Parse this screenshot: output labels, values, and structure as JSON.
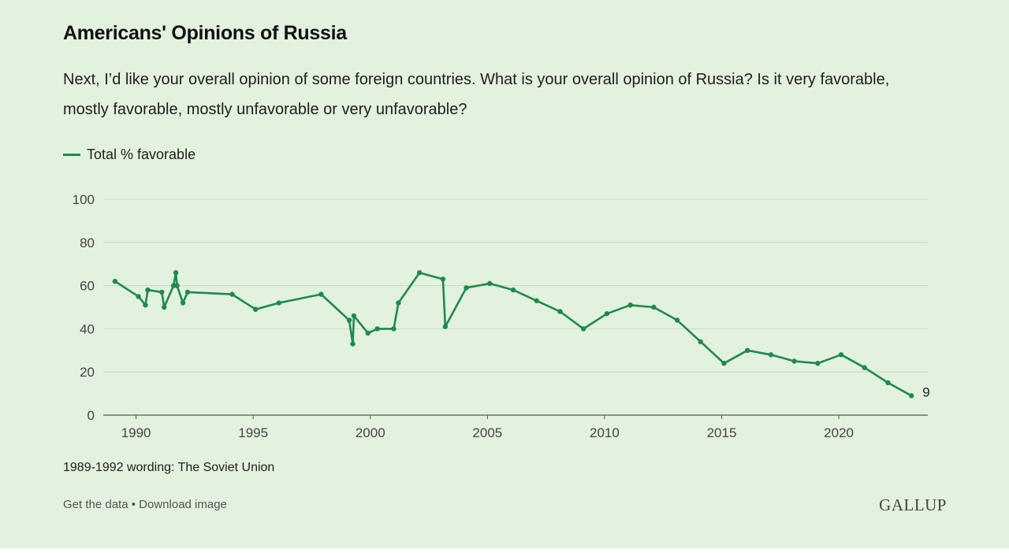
{
  "header": {
    "title": "Americans' Opinions of Russia",
    "subtitle": "Next, I’d like your overall opinion of some foreign countries. What is your overall opinion of Russia? Is it very favorable, mostly favorable, mostly unfavorable or very unfavorable?"
  },
  "legend": {
    "label": "Total % favorable"
  },
  "note": "1989-1992 wording: The Soviet Union",
  "footer": {
    "get_data": "Get the data",
    "separator": "•",
    "download": "Download image",
    "logo": "GALLUP"
  },
  "colors": {
    "background": "#e3f1df",
    "line": "#1f8a4c",
    "grid": "#c9d9c4",
    "axis_text": "#444444"
  },
  "chart_data": {
    "type": "line",
    "title": "Americans' Opinions of Russia",
    "xlabel": "",
    "ylabel": "",
    "xlim": [
      1988.6,
      2023.8
    ],
    "ylim": [
      0,
      100
    ],
    "grid": true,
    "legend_position": "top-left",
    "x_ticks": [
      1990,
      1995,
      2000,
      2005,
      2010,
      2015,
      2020
    ],
    "y_ticks": [
      0,
      20,
      40,
      60,
      80,
      100
    ],
    "end_label": "9",
    "series": [
      {
        "name": "Total % favorable",
        "color": "#1f8a4c",
        "points": [
          [
            1989.1,
            62
          ],
          [
            1990.1,
            55
          ],
          [
            1990.4,
            51
          ],
          [
            1990.5,
            58
          ],
          [
            1991.1,
            57
          ],
          [
            1991.2,
            50
          ],
          [
            1991.6,
            60
          ],
          [
            1991.7,
            66
          ],
          [
            1991.75,
            60
          ],
          [
            1992.0,
            52
          ],
          [
            1992.2,
            57
          ],
          [
            1994.1,
            56
          ],
          [
            1995.1,
            49
          ],
          [
            1996.1,
            52
          ],
          [
            1997.9,
            56
          ],
          [
            1999.1,
            44
          ],
          [
            1999.25,
            33
          ],
          [
            1999.3,
            46
          ],
          [
            1999.9,
            38
          ],
          [
            2000.3,
            40
          ],
          [
            2001.0,
            40
          ],
          [
            2001.2,
            52
          ],
          [
            2002.1,
            66
          ],
          [
            2003.1,
            63
          ],
          [
            2003.2,
            41
          ],
          [
            2004.1,
            59
          ],
          [
            2005.1,
            61
          ],
          [
            2006.1,
            58
          ],
          [
            2007.1,
            53
          ],
          [
            2008.1,
            48
          ],
          [
            2009.1,
            40
          ],
          [
            2010.1,
            47
          ],
          [
            2011.1,
            51
          ],
          [
            2012.1,
            50
          ],
          [
            2013.1,
            44
          ],
          [
            2014.1,
            34
          ],
          [
            2015.1,
            24
          ],
          [
            2016.1,
            30
          ],
          [
            2017.1,
            28
          ],
          [
            2018.1,
            25
          ],
          [
            2019.1,
            24
          ],
          [
            2020.1,
            28
          ],
          [
            2021.1,
            22
          ],
          [
            2022.1,
            15
          ],
          [
            2023.1,
            9
          ]
        ]
      }
    ]
  }
}
